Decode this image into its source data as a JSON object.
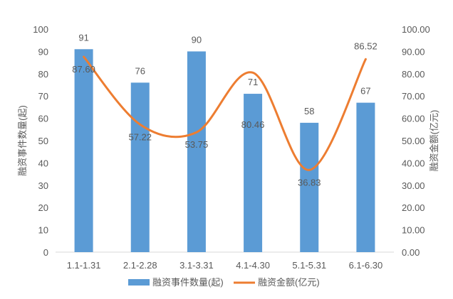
{
  "chart_data": {
    "type": "bar+line",
    "categories": [
      "1.1-1.31",
      "2.1-2.28",
      "3.1-3.31",
      "4.1-4.30",
      "5.1-5.31",
      "6.1-6.30"
    ],
    "series": [
      {
        "name": "融资事件数量(起)",
        "type": "bar",
        "axis": "left",
        "color": "#5B9BD5",
        "values": [
          91,
          76,
          90,
          71,
          58,
          67
        ],
        "labels": [
          "91",
          "76",
          "90",
          "71",
          "58",
          "67"
        ]
      },
      {
        "name": "融资金额(亿元)",
        "type": "line",
        "axis": "right",
        "color": "#ED7D31",
        "smooth": true,
        "values": [
          87.6,
          57.22,
          53.75,
          80.46,
          36.83,
          86.52
        ],
        "labels": [
          "87.60",
          "57.22",
          "53.75",
          "80.46",
          "36.83",
          "86.52"
        ]
      }
    ],
    "ylabel_left": "融资事件数量(起)",
    "ylabel_right": "融资金额(亿元)",
    "ylim_left": [
      0,
      100
    ],
    "ylim_right": [
      0,
      100
    ],
    "yticks_left": [
      "0",
      "10",
      "20",
      "30",
      "40",
      "50",
      "60",
      "70",
      "80",
      "90",
      "100"
    ],
    "yticks_right": [
      "0.00",
      "10.00",
      "20.00",
      "30.00",
      "40.00",
      "50.00",
      "60.00",
      "70.00",
      "80.00",
      "90.00",
      "100.00"
    ],
    "grid": false,
    "legend_position": "bottom"
  }
}
